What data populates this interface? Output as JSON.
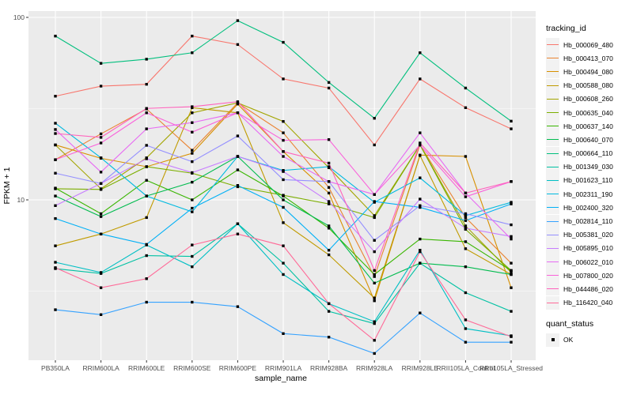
{
  "axes": {
    "y_title": "FPKM + 1",
    "x_title": "sample_name",
    "y_ticks": [
      {
        "label": "100",
        "value": 100
      },
      {
        "label": "10",
        "value": 10
      }
    ],
    "y_minor_values": [
      31.623,
      3.1623
    ]
  },
  "legend": {
    "tracking_title": "tracking_id",
    "quant_title": "quant_status",
    "quant_ok_label": "OK"
  },
  "colors": {
    "panel_background": "#EBEBEB",
    "grid_major": "#FFFFFF",
    "grid_minor": "#F7F7F7",
    "tick_mark": "#333333",
    "tick_label": "#4D4D4D",
    "point": "#000000",
    "legend_key_fill": "#F2F2F2"
  },
  "chart_data": {
    "type": "line",
    "title": "",
    "xlabel": "sample_name",
    "ylabel": "FPKM + 1",
    "yscale": "log10",
    "ylim": [
      1.32,
      108
    ],
    "grid": true,
    "legend_position": "right",
    "point_shape": "square",
    "point_color": "#000000",
    "quant_status": "OK",
    "categories": [
      "PB350LA",
      "RRIM600LA",
      "RRIM600LE",
      "RRIM600SE",
      "RRIM600PE",
      "RRIM901LA",
      "RRIM928BA",
      "RRIM928LA",
      "RRIM928LE",
      "RRII105LA_Control",
      "RRII105LA_Stressed"
    ],
    "series": [
      {
        "name": "Hb_000069_480",
        "color": "#F8766D",
        "values": [
          37,
          42,
          43,
          79,
          71,
          46,
          41,
          20,
          46,
          32,
          24.5
        ]
      },
      {
        "name": "Hb_000413_070",
        "color": "#EA8331",
        "values": [
          16.6,
          23,
          31.5,
          18.7,
          34,
          23.3,
          11.7,
          3.8,
          20,
          8.0,
          4.5
        ]
      },
      {
        "name": "Hb_000494_080",
        "color": "#D89000",
        "values": [
          20,
          16.9,
          15.2,
          18.0,
          33.5,
          18.4,
          10.9,
          2.8,
          17.6,
          17.3,
          3.3
        ]
      },
      {
        "name": "Hb_000588_080",
        "color": "#C09B00",
        "values": [
          5.6,
          6.5,
          8.0,
          32,
          30,
          7.5,
          5.0,
          2.9,
          17.5,
          5.4,
          3.9
        ]
      },
      {
        "name": "Hb_000608_260",
        "color": "#A3A500",
        "values": [
          20,
          11.5,
          17,
          30,
          34,
          26.9,
          15,
          8.2,
          20,
          7.2,
          4.0
        ]
      },
      {
        "name": "Hb_000635_040",
        "color": "#7CAE00",
        "values": [
          11.5,
          11.4,
          15.2,
          14,
          11.8,
          10.6,
          9.5,
          8.0,
          20,
          6.9,
          4.1
        ]
      },
      {
        "name": "Hb_000637_140",
        "color": "#39B600",
        "values": [
          11.6,
          8.4,
          12.8,
          10,
          14.6,
          10.5,
          7.0,
          3.9,
          6.1,
          5.9,
          4.1
        ]
      },
      {
        "name": "Hb_000640_070",
        "color": "#00BB4E",
        "values": [
          10.5,
          8.1,
          10.5,
          12.5,
          17.3,
          10,
          7.2,
          3.5,
          4.5,
          4.3,
          3.9
        ]
      },
      {
        "name": "Hb_000664_110",
        "color": "#00BF7D",
        "values": [
          79,
          56,
          59,
          64,
          96,
          73,
          44,
          28,
          64,
          41,
          27
        ]
      },
      {
        "name": "Hb_001349_030",
        "color": "#00C1A3",
        "values": [
          4.2,
          3.95,
          4.95,
          4.9,
          7.4,
          4.5,
          2.45,
          2.1,
          4.5,
          3.1,
          2.45
        ]
      },
      {
        "name": "Hb_001623_110",
        "color": "#00BFC4",
        "values": [
          4.55,
          4.0,
          5.66,
          4.3,
          7.4,
          3.9,
          2.7,
          2.15,
          5.3,
          1.97,
          1.8
        ]
      },
      {
        "name": "Hb_002311_190",
        "color": "#00BAE0",
        "values": [
          26.3,
          17,
          10.5,
          8.6,
          17.3,
          14.5,
          15.2,
          9.7,
          13.2,
          8.2,
          9.7
        ]
      },
      {
        "name": "Hb_002400_320",
        "color": "#00B0F6",
        "values": [
          7.9,
          6.5,
          5.7,
          9.0,
          12,
          9.1,
          5.3,
          9.8,
          9.1,
          7.7,
          9.5
        ]
      },
      {
        "name": "Hb_002814_110",
        "color": "#35A2FF",
        "values": [
          2.5,
          2.35,
          2.75,
          2.75,
          2.6,
          1.85,
          1.77,
          1.44,
          2.4,
          1.66,
          1.66
        ]
      },
      {
        "name": "Hb_005381_020",
        "color": "#9590FF",
        "values": [
          14,
          12.3,
          19.9,
          16.2,
          22.4,
          12.9,
          12.6,
          6.0,
          9.3,
          8.4,
          7.3
        ]
      },
      {
        "name": "Hb_005895_010",
        "color": "#C77CFF",
        "values": [
          9.3,
          12.3,
          16.8,
          14.1,
          17.3,
          14.3,
          9.8,
          5.2,
          10.1,
          7.0,
          6.3
        ]
      },
      {
        "name": "Hb_006022_010",
        "color": "#E76BF3",
        "values": [
          24.3,
          14.2,
          24.5,
          26.5,
          30,
          17.3,
          12.6,
          10.7,
          23.3,
          10.9,
          6.1
        ]
      },
      {
        "name": "Hb_007800_020",
        "color": "#FA62DB",
        "values": [
          16.6,
          20.5,
          30,
          23.5,
          30,
          21.2,
          21.4,
          10.7,
          20,
          10.4,
          12.6
        ]
      },
      {
        "name": "Hb_044486_020",
        "color": "#FF62BC",
        "values": [
          23.1,
          22,
          31.7,
          32.4,
          34.5,
          18.4,
          15.9,
          4.1,
          20.5,
          10.9,
          12.6
        ]
      },
      {
        "name": "Hb_116420_040",
        "color": "#FF6A98",
        "values": [
          4.25,
          3.3,
          3.7,
          5.66,
          6.5,
          5.6,
          2.7,
          1.7,
          5.2,
          2.2,
          1.78
        ]
      }
    ]
  }
}
